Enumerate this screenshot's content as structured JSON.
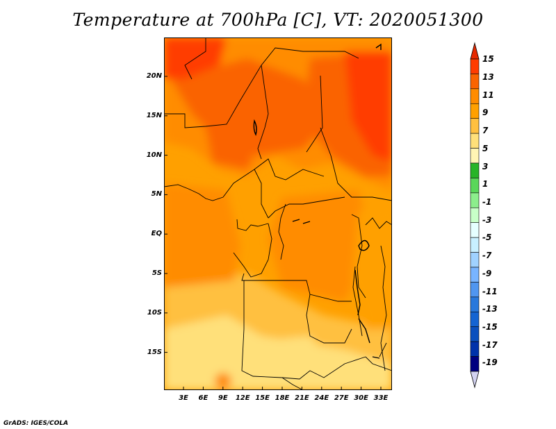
{
  "title": "Temperature at 700hPa [C], VT: 2020051300",
  "footer": "GrADS: IGES/COLA",
  "map": {
    "lat_ticks": [
      "20N",
      "15N",
      "10N",
      "5N",
      "EQ",
      "5S",
      "10S",
      "15S"
    ],
    "lon_ticks": [
      "3E",
      "6E",
      "9E",
      "12E",
      "15E",
      "18E",
      "21E",
      "24E",
      "27E",
      "30E",
      "33E"
    ]
  },
  "colorbar": {
    "levels": [
      "15",
      "13",
      "11",
      "9",
      "7",
      "5",
      "3",
      "1",
      "-1",
      "-3",
      "-5",
      "-7",
      "-9",
      "-11",
      "-13",
      "-15",
      "-17",
      "-19"
    ],
    "colors": [
      "#e62800",
      "#ff3c00",
      "#fa6400",
      "#ff8c00",
      "#ffa000",
      "#ffc040",
      "#ffe07a",
      "#fff5b4",
      "#28b428",
      "#5ad75a",
      "#8cee8c",
      "#c8ffc8",
      "#e6ffff",
      "#c8f0ff",
      "#a0d2ff",
      "#78b4ff",
      "#5096f0",
      "#2878dc",
      "#1464d2",
      "#0a50be",
      "#0032aa",
      "#000080",
      "#d2d2f0"
    ]
  }
}
